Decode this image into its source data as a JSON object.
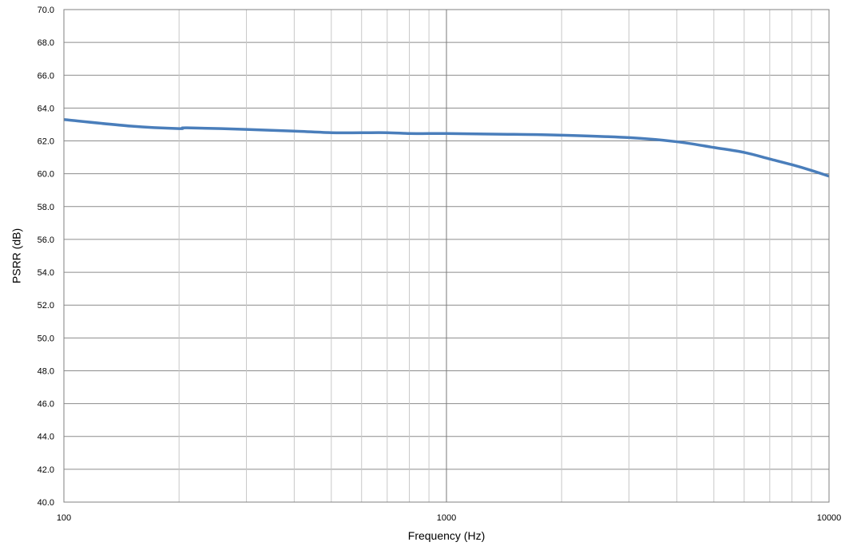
{
  "chart_data": {
    "type": "line",
    "title": "",
    "xlabel": "Frequency (Hz)",
    "ylabel": "PSRR (dB)",
    "x_scale": "log",
    "xlim": [
      100,
      10000
    ],
    "ylim": [
      40,
      70
    ],
    "y_step": 2,
    "x_tick_labels": [
      "100",
      "1000",
      "10000"
    ],
    "y_tick_labels": [
      "40.0",
      "42.0",
      "44.0",
      "46.0",
      "48.0",
      "50.0",
      "52.0",
      "54.0",
      "56.0",
      "58.0",
      "60.0",
      "62.0",
      "64.0",
      "66.0",
      "68.0",
      "70.0"
    ],
    "grid": true,
    "legend": "none",
    "series": [
      {
        "color": "#4a7ebb",
        "x": [
          100,
          150,
          200,
          210,
          300,
          400,
          500,
          600,
          700,
          800,
          900,
          1000,
          1500,
          2000,
          3000,
          4000,
          5000,
          6000,
          7000,
          8000,
          9000,
          10000
        ],
        "y": [
          63.3,
          62.9,
          62.75,
          62.8,
          62.7,
          62.6,
          62.5,
          62.5,
          62.5,
          62.45,
          62.45,
          62.45,
          62.4,
          62.35,
          62.2,
          61.95,
          61.6,
          61.3,
          60.9,
          60.55,
          60.2,
          59.85
        ]
      }
    ]
  }
}
